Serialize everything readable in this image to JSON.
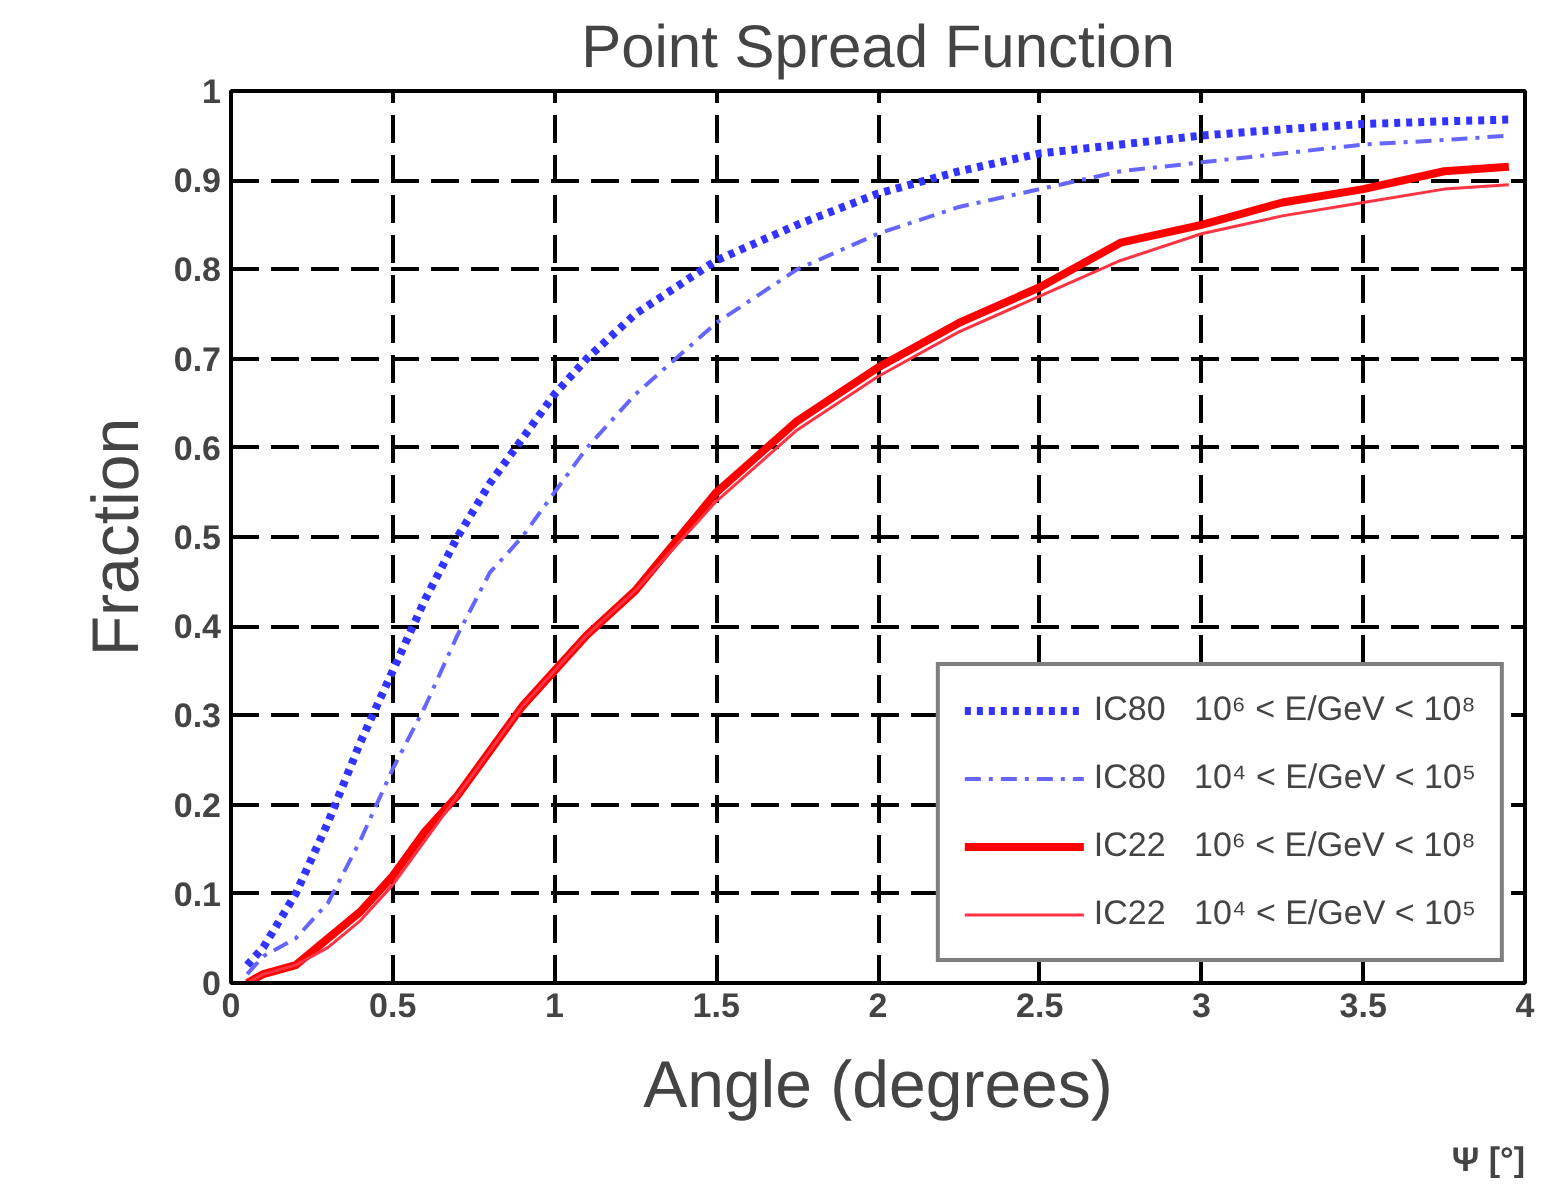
{
  "chart_data": {
    "type": "line",
    "title": "Point Spread Function",
    "xlabel": "Angle (degrees)",
    "ylabel": "Fraction",
    "annotations": [
      "Ψ [°]"
    ],
    "x": [
      0.05,
      0.1,
      0.2,
      0.3,
      0.4,
      0.5,
      0.6,
      0.7,
      0.8,
      0.9,
      1.0,
      1.1,
      1.25,
      1.5,
      1.75,
      2.0,
      2.25,
      2.5,
      2.75,
      3.0,
      3.25,
      3.5,
      3.75,
      3.95
    ],
    "series": [
      {
        "name": "IC80   10⁶ < E/GeV < 10⁸",
        "color": "#3333ff",
        "line_style": "dotted",
        "values": [
          0.02,
          0.04,
          0.1,
          0.18,
          0.27,
          0.35,
          0.43,
          0.5,
          0.56,
          0.61,
          0.66,
          0.7,
          0.75,
          0.81,
          0.85,
          0.885,
          0.91,
          0.93,
          0.94,
          0.95,
          0.957,
          0.963,
          0.966,
          0.968
        ]
      },
      {
        "name": "IC80   10⁴ < E/GeV < 10⁵",
        "color": "#6666ff",
        "line_style": "dashed",
        "values": [
          0.01,
          0.03,
          0.05,
          0.09,
          0.16,
          0.24,
          0.31,
          0.39,
          0.46,
          0.5,
          0.55,
          0.6,
          0.66,
          0.74,
          0.8,
          0.84,
          0.87,
          0.89,
          0.91,
          0.92,
          0.93,
          0.94,
          0.945,
          0.95
        ]
      },
      {
        "name": "IC22   10⁶ < E/GeV < 10⁸",
        "color": "#ff0000",
        "line_style": "solid",
        "values": [
          0.0,
          0.01,
          0.02,
          0.05,
          0.08,
          0.12,
          0.17,
          0.21,
          0.26,
          0.31,
          0.35,
          0.39,
          0.44,
          0.55,
          0.63,
          0.69,
          0.74,
          0.78,
          0.83,
          0.85,
          0.875,
          0.89,
          0.91,
          0.915
        ]
      },
      {
        "name": "IC22   10⁴ < E/GeV < 10⁵",
        "color": "#ff3344",
        "line_style": "solid",
        "values": [
          0.0,
          0.01,
          0.02,
          0.04,
          0.07,
          0.11,
          0.16,
          0.21,
          0.26,
          0.31,
          0.35,
          0.39,
          0.44,
          0.54,
          0.62,
          0.68,
          0.73,
          0.77,
          0.81,
          0.84,
          0.86,
          0.875,
          0.89,
          0.895
        ]
      }
    ],
    "xlim": [
      0,
      4
    ],
    "xticks": [
      0,
      0.5,
      1,
      1.5,
      2,
      2.5,
      3,
      3.5,
      4
    ],
    "ylim": [
      0,
      1
    ],
    "yticks": [
      0,
      0.1,
      0.2,
      0.3,
      0.4,
      0.5,
      0.6,
      0.7,
      0.8,
      0.9,
      1
    ],
    "grid": true,
    "legend": "bottom right"
  }
}
